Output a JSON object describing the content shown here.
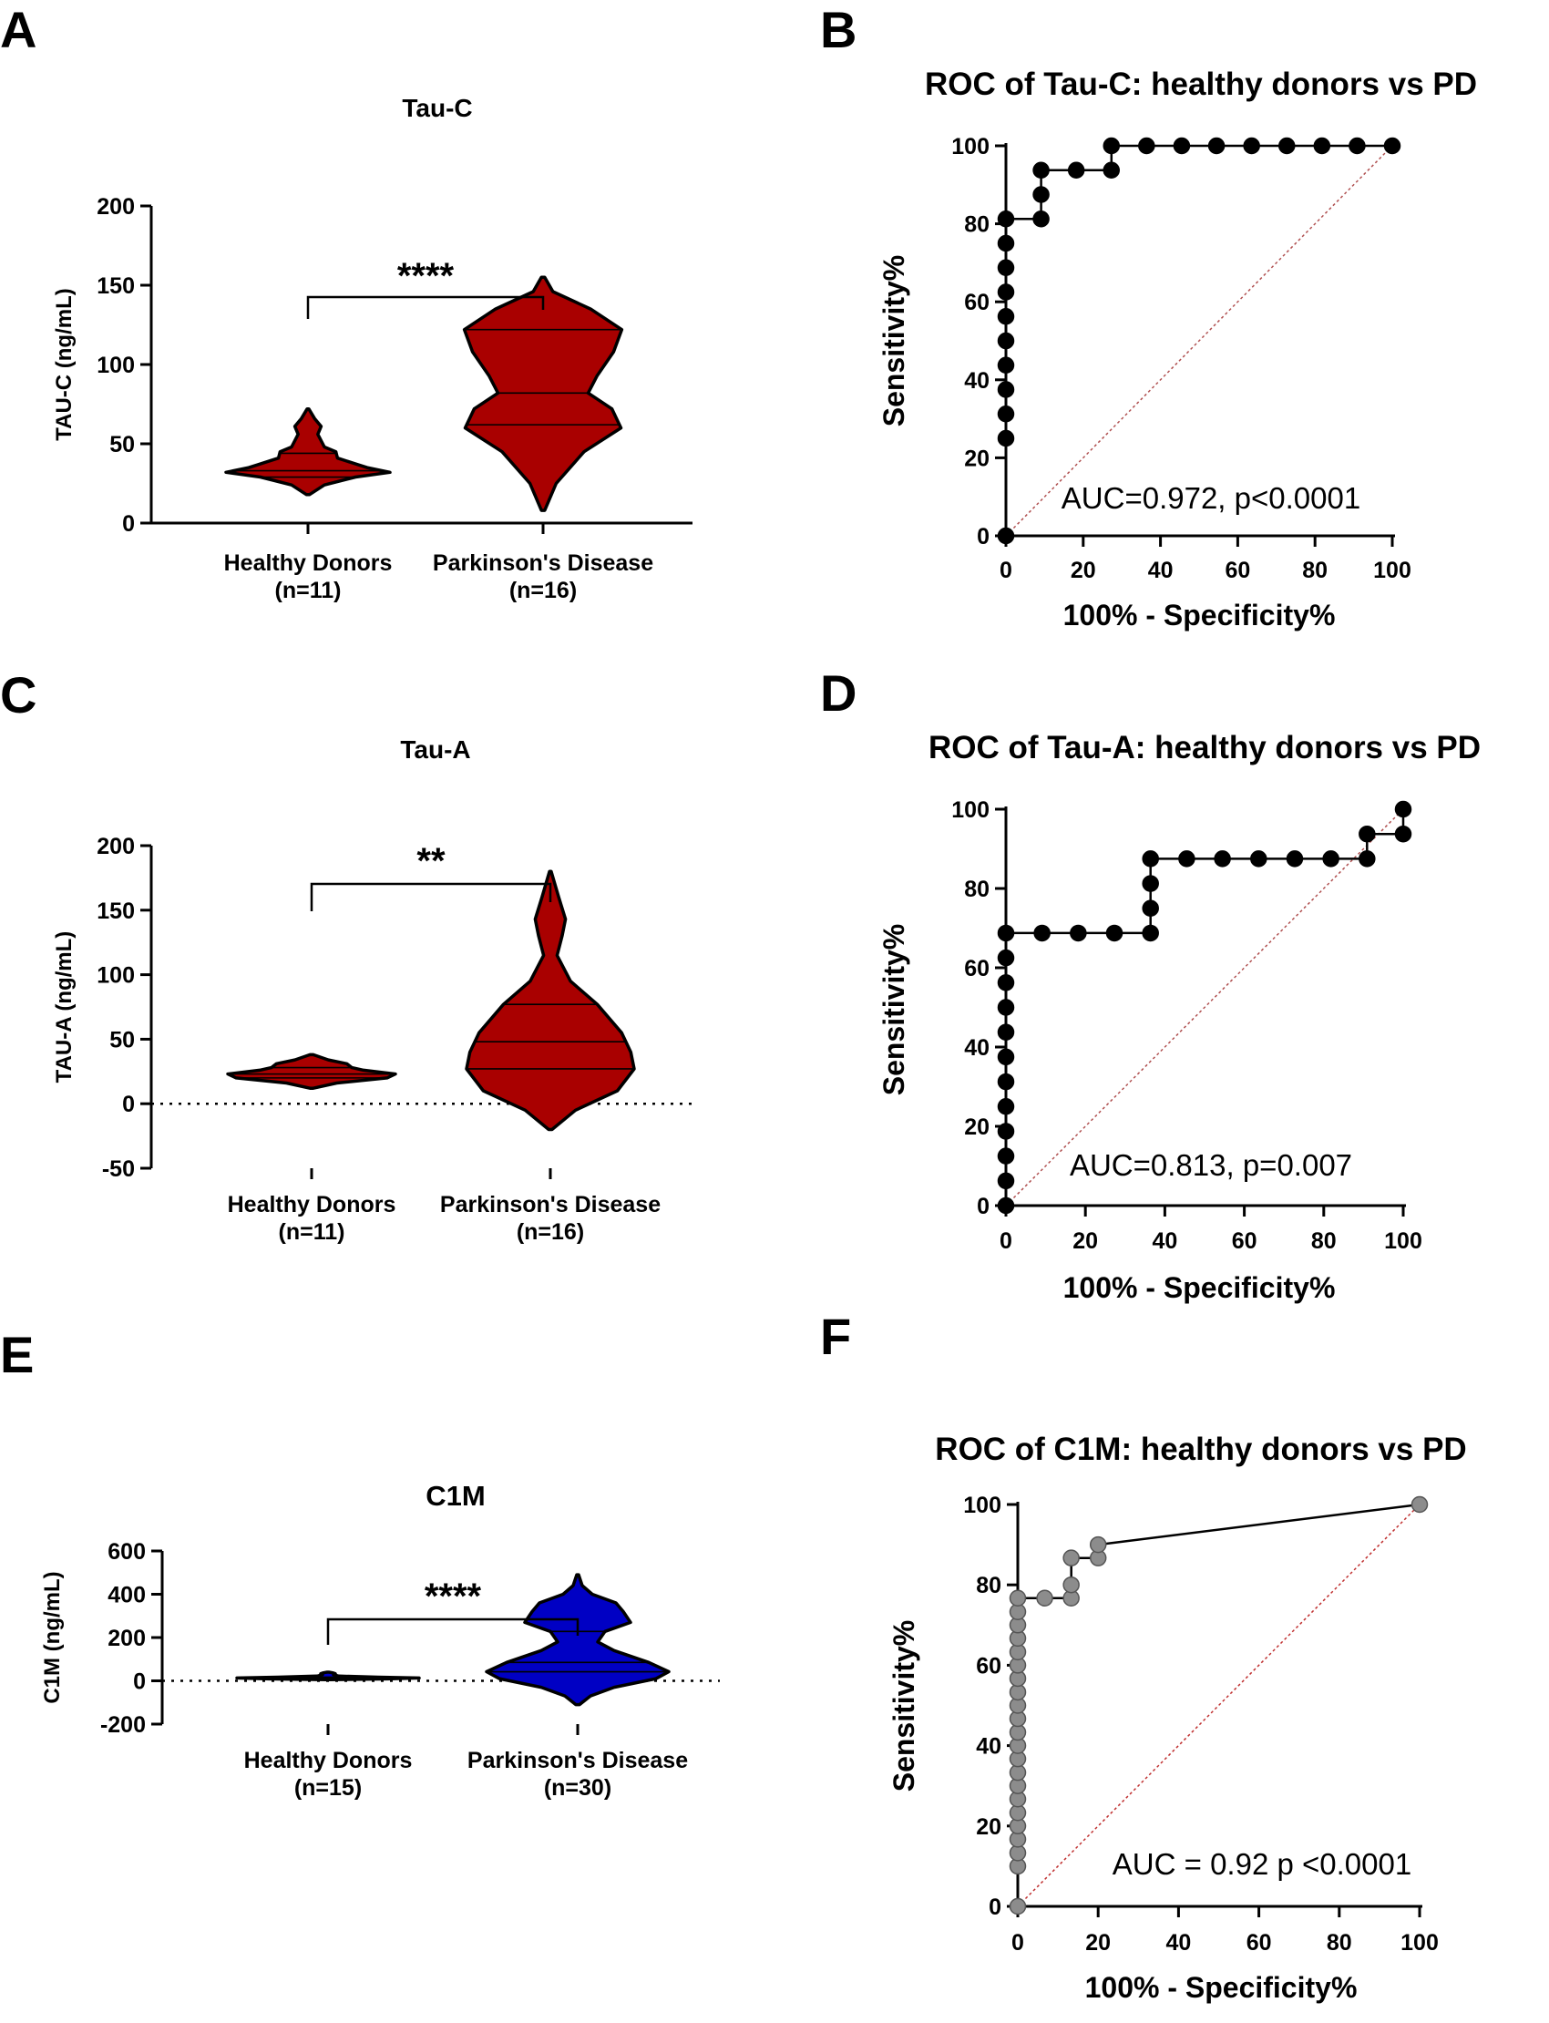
{
  "chart_data": [
    {
      "id": "A",
      "type": "violin",
      "panel_label": "A",
      "title": "Tau-C",
      "ylabel": "TAU-C (ng/mL)",
      "ylim": [
        0,
        200
      ],
      "yticks": [
        0,
        50,
        100,
        150,
        200
      ],
      "zero_line": false,
      "significance": "****",
      "fill_color": "#a90000",
      "groups": [
        {
          "name": "Healthy Donors",
          "n_label": "(n=11)",
          "min": 18,
          "max": 72,
          "quartiles": [
            29,
            33,
            44
          ],
          "profile": [
            [
              18,
              0.02
            ],
            [
              24,
              0.2
            ],
            [
              29,
              0.58
            ],
            [
              32,
              1
            ],
            [
              35,
              0.72
            ],
            [
              41,
              0.36
            ],
            [
              45,
              0.34
            ],
            [
              48,
              0.2
            ],
            [
              56,
              0.12
            ],
            [
              61,
              0.16
            ],
            [
              66,
              0.08
            ],
            [
              72,
              0.01
            ]
          ]
        },
        {
          "name": "Parkinson's Disease",
          "n_label": "(n=16)",
          "min": 8,
          "max": 155,
          "quartiles": [
            62,
            82,
            122
          ],
          "profile": [
            [
              8,
              0.02
            ],
            [
              25,
              0.16
            ],
            [
              45,
              0.5
            ],
            [
              60,
              0.95
            ],
            [
              72,
              0.84
            ],
            [
              82,
              0.55
            ],
            [
              93,
              0.66
            ],
            [
              108,
              0.86
            ],
            [
              122,
              0.96
            ],
            [
              135,
              0.58
            ],
            [
              146,
              0.12
            ],
            [
              155,
              0.02
            ]
          ]
        }
      ]
    },
    {
      "id": "B",
      "type": "line",
      "panel_label": "B",
      "title": "ROC of Tau-C: healthy donors vs PD",
      "xlabel": "100% - Specificity%",
      "ylabel": "Sensitivity%",
      "xlim": [
        0,
        100
      ],
      "ylim": [
        0,
        100
      ],
      "ticks": [
        0,
        20,
        40,
        60,
        80,
        100
      ],
      "annotation": "AUC=0.972, p<0.0001",
      "line_color": "#000000",
      "marker_fill": "#000000",
      "diag_color": "#b05050",
      "x": [
        0,
        0,
        0,
        0,
        0,
        0,
        0,
        0,
        0,
        0,
        0,
        0,
        0,
        0,
        9.1,
        9.1,
        9.1,
        18.2,
        27.3,
        27.3,
        36.4,
        45.5,
        54.5,
        63.6,
        72.7,
        81.8,
        90.9,
        100
      ],
      "y": [
        0,
        25,
        31.25,
        37.5,
        43.75,
        50,
        56.25,
        62.5,
        68.75,
        75,
        81.25,
        81.25,
        81.25,
        81.25,
        81.25,
        87.5,
        93.75,
        93.75,
        93.75,
        100,
        100,
        100,
        100,
        100,
        100,
        100,
        100,
        100
      ]
    },
    {
      "id": "C",
      "type": "violin",
      "panel_label": "C",
      "title": "Tau-A",
      "ylabel": "TAU-A (ng/mL)",
      "ylim": [
        -50,
        200
      ],
      "yticks": [
        -50,
        0,
        50,
        100,
        150,
        200
      ],
      "zero_line": true,
      "significance": "**",
      "fill_color": "#a90000",
      "groups": [
        {
          "name": "Healthy Donors",
          "n_label": "(n=11)",
          "min": 12,
          "max": 38,
          "quartiles": [
            20,
            23,
            28
          ],
          "profile": [
            [
              12,
              0.02
            ],
            [
              16,
              0.3
            ],
            [
              20,
              0.9
            ],
            [
              23,
              1
            ],
            [
              26,
              0.62
            ],
            [
              28,
              0.48
            ],
            [
              31,
              0.42
            ],
            [
              34,
              0.2
            ],
            [
              38,
              0.02
            ]
          ]
        },
        {
          "name": "Parkinson's Disease",
          "n_label": "(n=16)",
          "min": -20,
          "max": 180,
          "quartiles": [
            27,
            48,
            77
          ],
          "profile": [
            [
              -20,
              0.02
            ],
            [
              -5,
              0.3
            ],
            [
              10,
              0.8
            ],
            [
              27,
              1
            ],
            [
              40,
              0.96
            ],
            [
              55,
              0.85
            ],
            [
              77,
              0.56
            ],
            [
              95,
              0.24
            ],
            [
              115,
              0.08
            ],
            [
              130,
              0.14
            ],
            [
              143,
              0.18
            ],
            [
              160,
              0.1
            ],
            [
              180,
              0.01
            ]
          ]
        }
      ]
    },
    {
      "id": "D",
      "type": "line",
      "panel_label": "D",
      "title": "ROC of Tau-A: healthy donors vs PD",
      "xlabel": "100% - Specificity%",
      "ylabel": "Sensitivity%",
      "xlim": [
        0,
        100
      ],
      "ylim": [
        0,
        100
      ],
      "ticks": [
        0,
        20,
        40,
        60,
        80,
        100
      ],
      "annotation": "AUC=0.813, p=0.007",
      "line_color": "#000000",
      "marker_fill": "#000000",
      "diag_color": "#b05050",
      "x": [
        0,
        0,
        0,
        0,
        0,
        0,
        0,
        0,
        0,
        0,
        0,
        0,
        0,
        9.1,
        18.2,
        27.3,
        36.4,
        36.4,
        36.4,
        36.4,
        45.5,
        54.5,
        63.6,
        72.7,
        81.8,
        90.9,
        90.9,
        100,
        100
      ],
      "y": [
        0,
        6.25,
        12.5,
        18.75,
        25,
        31.25,
        37.5,
        43.75,
        50,
        56.25,
        62.5,
        68.75,
        68.75,
        68.75,
        68.75,
        68.75,
        68.75,
        75,
        81.25,
        87.5,
        87.5,
        87.5,
        87.5,
        87.5,
        87.5,
        87.5,
        93.75,
        93.75,
        100
      ]
    },
    {
      "id": "E",
      "type": "violin",
      "panel_label": "E",
      "title": "C1M",
      "ylabel": "C1M (ng/mL)",
      "ylim": [
        -200,
        600
      ],
      "yticks": [
        -200,
        0,
        200,
        400,
        600
      ],
      "zero_line": true,
      "significance": "****",
      "fill_color": "#0000c4",
      "groups": [
        {
          "name": "Healthy Donors",
          "n_label": "(n=15)",
          "min": 5,
          "max": 40,
          "quartiles": [
            10,
            13,
            17
          ],
          "profile": [
            [
              5,
              0.02
            ],
            [
              9,
              0.65
            ],
            [
              13,
              1
            ],
            [
              17,
              0.55
            ],
            [
              22,
              0.12
            ],
            [
              28,
              0.06
            ],
            [
              33,
              0.08
            ],
            [
              37,
              0.05
            ],
            [
              40,
              0.01
            ]
          ]
        },
        {
          "name": "Parkinson's Disease",
          "n_label": "(n=30)",
          "min": -110,
          "max": 490,
          "quartiles": [
            42,
            85,
            228
          ],
          "profile": [
            [
              -110,
              0.02
            ],
            [
              -70,
              0.14
            ],
            [
              -30,
              0.4
            ],
            [
              10,
              0.86
            ],
            [
              42,
              1
            ],
            [
              85,
              0.78
            ],
            [
              140,
              0.4
            ],
            [
              180,
              0.22
            ],
            [
              228,
              0.3
            ],
            [
              270,
              0.58
            ],
            [
              320,
              0.5
            ],
            [
              360,
              0.42
            ],
            [
              400,
              0.16
            ],
            [
              440,
              0.05
            ],
            [
              490,
              0.01
            ]
          ]
        }
      ]
    },
    {
      "id": "F",
      "type": "line",
      "panel_label": "F",
      "title": "ROC of C1M: healthy donors vs PD",
      "xlabel": "100% - Specificity%",
      "ylabel": "Sensitivity%",
      "xlim": [
        0,
        100
      ],
      "ylim": [
        0,
        100
      ],
      "ticks": [
        0,
        20,
        40,
        60,
        80,
        100
      ],
      "annotation": "AUC = 0.92 p <0.0001",
      "line_color": "#000000",
      "marker_fill": "#8c8c8c",
      "diag_color": "#c03030",
      "x": [
        0,
        0,
        0,
        0,
        0,
        0,
        0,
        0,
        0,
        0,
        0,
        0,
        0,
        0,
        0,
        0,
        0,
        0,
        0,
        0,
        0,
        0,
        0,
        0,
        6.7,
        13.3,
        13.3,
        13.3,
        20,
        20,
        100
      ],
      "y": [
        0,
        10,
        13.3,
        16.7,
        20,
        23.3,
        26.7,
        30,
        33.3,
        36.7,
        40,
        43.3,
        46.7,
        50,
        53.3,
        56.7,
        60,
        63.3,
        66.7,
        70,
        73.3,
        76.7,
        76.7,
        76.7,
        76.7,
        76.7,
        80,
        86.7,
        86.7,
        90,
        100
      ]
    }
  ]
}
